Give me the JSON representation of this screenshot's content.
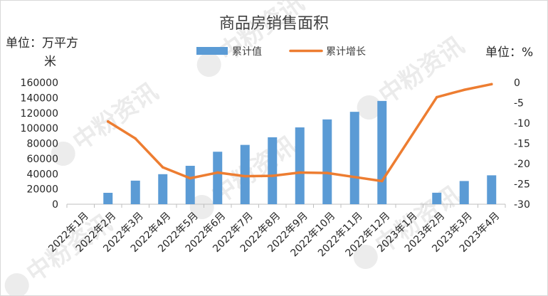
{
  "chart_data": {
    "type": "bar+line",
    "title": "商品房销售面积",
    "left_unit_line1": "单位：万平方",
    "left_unit_line2": "米",
    "right_unit": "单位：%",
    "categories": [
      "2022年1月",
      "2022年2月",
      "2022年3月",
      "2022年4月",
      "2022年5月",
      "2022年6月",
      "2022年7月",
      "2022年8月",
      "2022年9月",
      "2022年10月",
      "2022年11月",
      "2022年12月",
      "2023年1月",
      "2023年2月",
      "2023年3月",
      "2023年4月"
    ],
    "series": [
      {
        "name": "累计值",
        "type": "bar",
        "axis": "left",
        "color": "#5b9bd5",
        "values": [
          null,
          15000,
          31000,
          39500,
          50500,
          69000,
          78000,
          88000,
          101000,
          111500,
          121500,
          135800,
          null,
          15100,
          30500,
          38000
        ]
      },
      {
        "name": "累计增长",
        "type": "line",
        "axis": "right",
        "color": "#ed7d31",
        "values": [
          null,
          -9.6,
          -13.8,
          -20.9,
          -23.6,
          -22.2,
          -23.1,
          -23.0,
          -22.2,
          -22.3,
          -23.3,
          -24.3,
          null,
          -3.6,
          -1.8,
          -0.4
        ]
      }
    ],
    "left_axis": {
      "min": 0,
      "max": 160000,
      "ticks": [
        0,
        20000,
        40000,
        60000,
        80000,
        100000,
        120000,
        140000,
        160000
      ]
    },
    "right_axis": {
      "min": -30,
      "max": 0,
      "ticks": [
        0,
        -5,
        -10,
        -15,
        -20,
        -25,
        -30
      ]
    },
    "legend_position": "top",
    "grid": false
  },
  "watermark": {
    "text": "中粉资讯",
    "icon": "p-logo-icon"
  }
}
